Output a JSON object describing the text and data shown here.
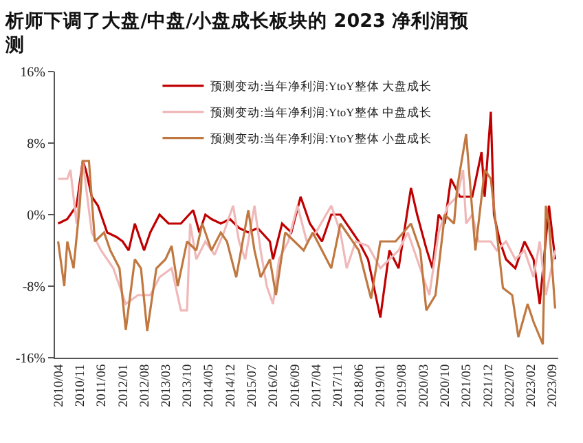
{
  "chart_data": {
    "type": "line",
    "title": "析师下调了大盘/中盘/小盘成长板块的 2023 净利润预测",
    "legend": "top",
    "grid": false,
    "line_style": "solid",
    "marker": "none",
    "xlim": [
      "2010-03",
      "2023-11"
    ],
    "xticks": [
      {
        "value": "2010-04",
        "label": "2010/04"
      },
      {
        "value": "2010-11",
        "label": "2010/11"
      },
      {
        "value": "2011-06",
        "label": "2011/06"
      },
      {
        "value": "2012-01",
        "label": "2012/01"
      },
      {
        "value": "2012-08",
        "label": "2012/08"
      },
      {
        "value": "2013-03",
        "label": "2013/03"
      },
      {
        "value": "2013-10",
        "label": "2013/10"
      },
      {
        "value": "2014-05",
        "label": "2014/05"
      },
      {
        "value": "2014-12",
        "label": "2014/12"
      },
      {
        "value": "2015-07",
        "label": "2015/07"
      },
      {
        "value": "2016-02",
        "label": "2016/02"
      },
      {
        "value": "2016-09",
        "label": "2016/09"
      },
      {
        "value": "2017-04",
        "label": "2017/04"
      },
      {
        "value": "2017-11",
        "label": "2017/11"
      },
      {
        "value": "2018-06",
        "label": "2018/06"
      },
      {
        "value": "2019-01",
        "label": "2019/01"
      },
      {
        "value": "2019-08",
        "label": "2019/08"
      },
      {
        "value": "2020-03",
        "label": "2020/03"
      },
      {
        "value": "2020-10",
        "label": "2020/10"
      },
      {
        "value": "2021-05",
        "label": "2021/05"
      },
      {
        "value": "2021-12",
        "label": "2021/12"
      },
      {
        "value": "2022-07",
        "label": "2022/07"
      },
      {
        "value": "2023-02",
        "label": "2023/02"
      },
      {
        "value": "2023-09",
        "label": "2023/09"
      }
    ],
    "ylim": [
      -16,
      16
    ],
    "yticks": [
      {
        "value": -16,
        "label": "-16%"
      },
      {
        "value": -8,
        "label": "-8%"
      },
      {
        "value": 0,
        "label": "0%"
      },
      {
        "value": 8,
        "label": "8%"
      },
      {
        "value": 16,
        "label": "16%"
      }
    ],
    "series": [
      {
        "name": "预测变动:当年净利润:YtoY整体 大盘成长",
        "color": "#c00000",
        "x": [
          "2010-04",
          "2010-07",
          "2010-10",
          "2010-12",
          "2011-01",
          "2011-03",
          "2011-05",
          "2011-08",
          "2011-11",
          "2012-01",
          "2012-03",
          "2012-05",
          "2012-08",
          "2012-10",
          "2013-01",
          "2013-04",
          "2013-08",
          "2013-12",
          "2014-02",
          "2014-04",
          "2014-06",
          "2014-09",
          "2014-12",
          "2015-03",
          "2015-06",
          "2015-09",
          "2016-01",
          "2016-02",
          "2016-05",
          "2016-08",
          "2016-11",
          "2017-02",
          "2017-06",
          "2017-09",
          "2017-12",
          "2018-04",
          "2018-06",
          "2018-09",
          "2019-01",
          "2019-04",
          "2019-07",
          "2019-11",
          "2020-01",
          "2020-04",
          "2020-06",
          "2020-08",
          "2020-10",
          "2020-12",
          "2021-03",
          "2021-07",
          "2021-10",
          "2021-11",
          "2022-01",
          "2022-02",
          "2022-04",
          "2022-06",
          "2022-09",
          "2022-12",
          "2023-03",
          "2023-05",
          "2023-08",
          "2023-10"
        ],
        "values": [
          -1,
          -0.5,
          1,
          6,
          5,
          2,
          1,
          -2,
          -2.5,
          -3,
          -4,
          -1,
          -4,
          -2,
          0,
          -1,
          -1,
          0.5,
          -2,
          0,
          -0.5,
          -1,
          -0.5,
          -1.5,
          -2,
          -1.5,
          -3,
          -5,
          -1,
          -2,
          2,
          -1,
          -3,
          0,
          0,
          -2,
          -3,
          -5,
          -11.5,
          -4,
          -6,
          3,
          0,
          -3.8,
          -6,
          0,
          -1,
          4,
          2,
          2,
          7,
          2,
          11.5,
          0,
          -3,
          -5,
          -6,
          -3,
          -5,
          -10,
          1,
          -5
        ]
      },
      {
        "name": "预测变动:当年净利润:YtoY整体 中盘成长",
        "color": "#f0b8b8",
        "x": [
          "2010-04",
          "2010-07",
          "2010-08",
          "2010-10",
          "2010-12",
          "2011-03",
          "2011-06",
          "2011-10",
          "2012-02",
          "2012-06",
          "2012-10",
          "2013-01",
          "2013-05",
          "2013-08",
          "2013-10",
          "2013-11",
          "2014-01",
          "2014-04",
          "2014-07",
          "2014-10",
          "2015-01",
          "2015-03",
          "2015-05",
          "2015-08",
          "2015-10",
          "2015-12",
          "2016-02",
          "2016-04",
          "2016-07",
          "2016-10",
          "2017-01",
          "2017-04",
          "2017-09",
          "2017-12",
          "2018-02",
          "2018-05",
          "2018-09",
          "2019-01",
          "2019-04",
          "2019-07",
          "2019-10",
          "2020-01",
          "2020-05",
          "2020-08",
          "2020-11",
          "2021-02",
          "2021-04",
          "2021-05",
          "2021-07",
          "2021-09",
          "2022-01",
          "2022-03",
          "2022-06",
          "2022-09",
          "2022-12",
          "2023-03",
          "2023-05",
          "2023-07",
          "2023-10"
        ],
        "values": [
          4,
          4,
          5,
          -1,
          6,
          -2,
          -4,
          -6,
          -10,
          -9,
          -9,
          -7,
          -6,
          -10.7,
          -10.7,
          -1,
          -5,
          -3,
          -4.5,
          -2,
          1,
          -3,
          -5,
          1,
          -4,
          -8,
          -10,
          -5,
          -3,
          1,
          -3,
          -2,
          1,
          -2,
          -6,
          -3,
          -3.5,
          -6,
          -5,
          -4,
          -2,
          -5,
          -9,
          -2,
          1,
          2,
          5,
          -1,
          0,
          -3,
          -3,
          -4,
          -3,
          -5,
          -4,
          -7,
          -3,
          -9,
          -4
        ]
      },
      {
        "name": "预测变动:当年净利润:YtoY整体 小盘成长",
        "color": "#c07840",
        "x": [
          "2010-04",
          "2010-06",
          "2010-07",
          "2010-09",
          "2010-11",
          "2010-12",
          "2011-02",
          "2011-04",
          "2011-07",
          "2011-09",
          "2011-12",
          "2012-02",
          "2012-05",
          "2012-07",
          "2012-09",
          "2012-12",
          "2013-03",
          "2013-05",
          "2013-07",
          "2013-10",
          "2014-01",
          "2014-03",
          "2014-06",
          "2014-09",
          "2014-11",
          "2015-02",
          "2015-06",
          "2015-08",
          "2015-10",
          "2016-01",
          "2016-03",
          "2016-06",
          "2016-09",
          "2016-12",
          "2017-03",
          "2017-09",
          "2017-12",
          "2018-06",
          "2018-10",
          "2019-01",
          "2019-06",
          "2019-11",
          "2020-02",
          "2020-04",
          "2020-07",
          "2020-10",
          "2021-01",
          "2021-02",
          "2021-05",
          "2021-08",
          "2021-11",
          "2022-01",
          "2022-05",
          "2022-08",
          "2022-10",
          "2023-01",
          "2023-03",
          "2023-06",
          "2023-07",
          "2023-08",
          "2023-10"
        ],
        "values": [
          -3,
          -8,
          -3,
          -6,
          1,
          6,
          6,
          -3,
          -2,
          -4,
          -6,
          -12.9,
          -5,
          -6,
          -13,
          -6,
          -5,
          -3.5,
          -8,
          -3,
          -4,
          -1,
          -4,
          -2,
          -3,
          -7,
          0.5,
          -4,
          -7,
          -5,
          -9,
          -2,
          -3,
          -4,
          -2,
          -6,
          -1,
          -4,
          -9.4,
          -3,
          -3,
          -1,
          -4,
          -10.7,
          -9,
          0,
          -1,
          3,
          9,
          -4,
          5,
          4,
          -8.2,
          -9,
          -13.7,
          -10,
          -12,
          -14.5,
          1,
          -1,
          -10.5
        ]
      }
    ]
  }
}
